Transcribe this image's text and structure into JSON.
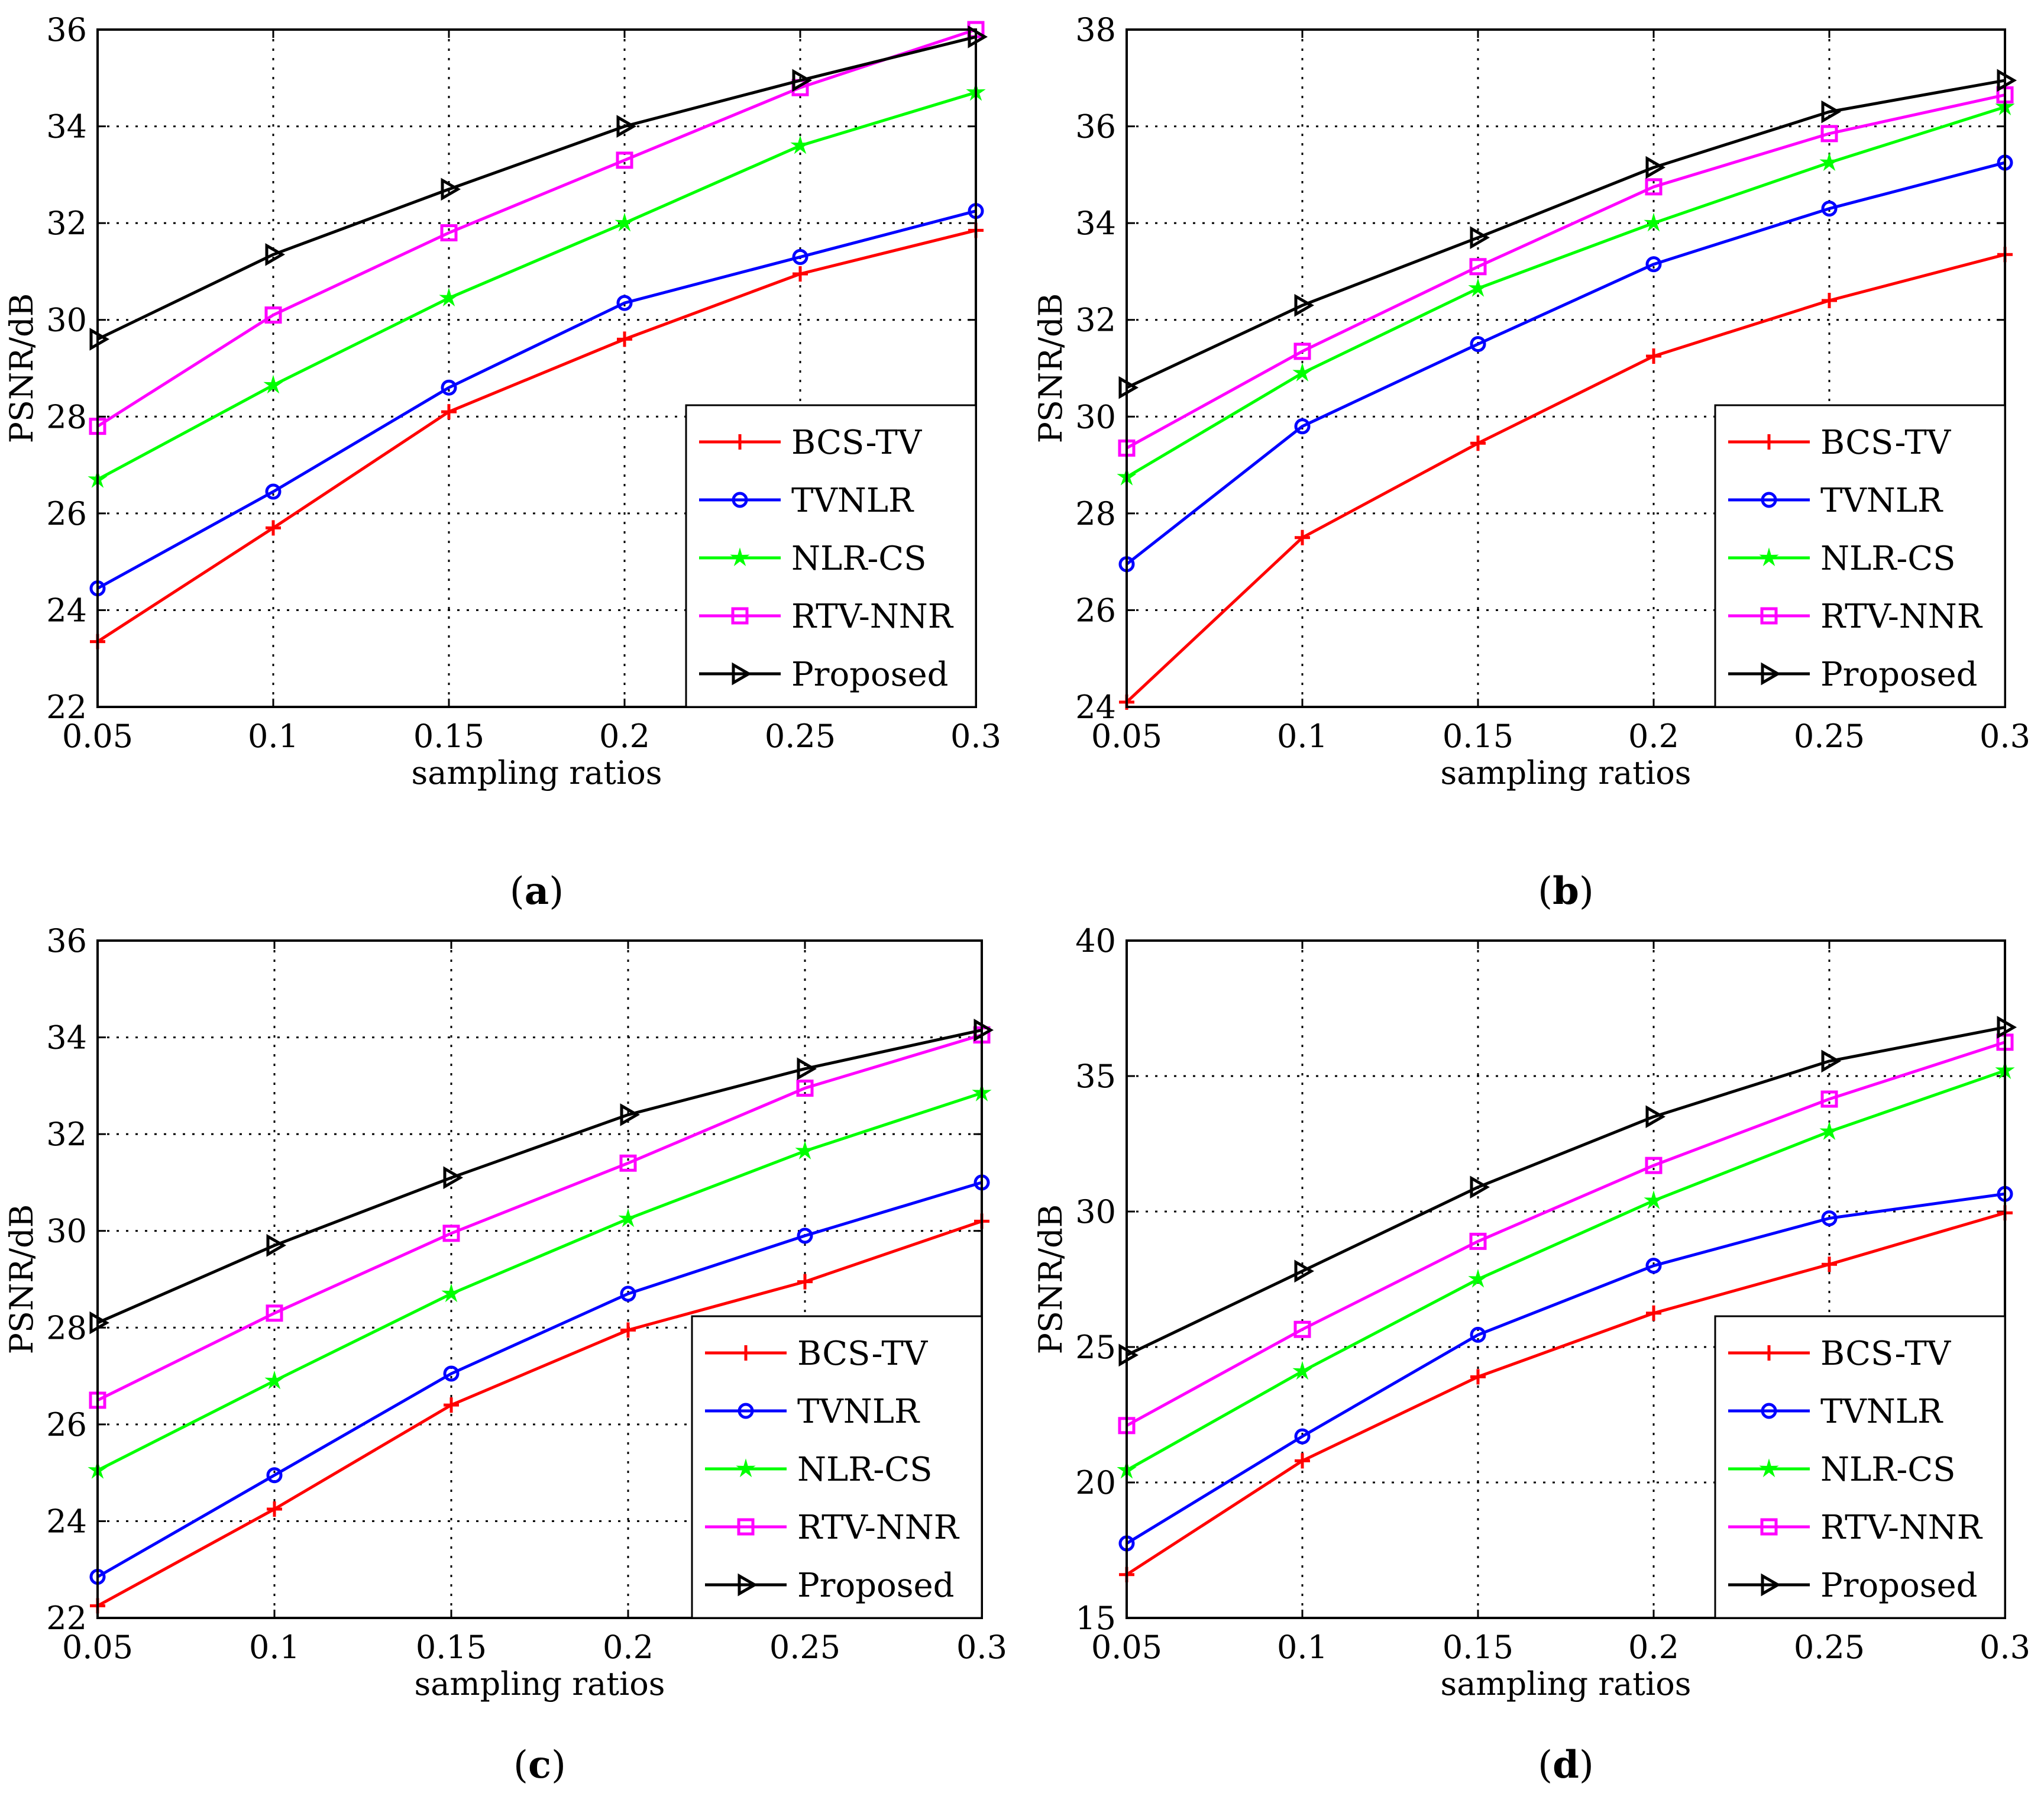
{
  "colors": {
    "BCS-TV": "#ff0000",
    "TVNLR": "#0000ff",
    "NLR-CS": "#00ff00",
    "RTV-NNR": "#ff00ff",
    "Proposed": "#000000"
  },
  "markers": {
    "BCS-TV": "plus",
    "TVNLR": "circle",
    "NLR-CS": "star",
    "RTV-NNR": "square",
    "Proposed": "triangle-right"
  },
  "chart_data": [
    {
      "type": "line",
      "caption_letter": "a",
      "caption_open": "(",
      "caption_close": ")",
      "xlabel": "sampling ratios",
      "ylabel": "PSNR/dB",
      "x": [
        0.05,
        0.1,
        0.15,
        0.2,
        0.25,
        0.3
      ],
      "x_tick_labels": [
        "0.05",
        "0.1",
        "0.15",
        "0.2",
        "0.25",
        "0.3"
      ],
      "xlim": [
        0.05,
        0.3
      ],
      "ylim": [
        22,
        36
      ],
      "y_ticks": [
        22,
        24,
        26,
        28,
        30,
        32,
        34,
        36
      ],
      "y_tick_labels": [
        "22",
        "24",
        "26",
        "28",
        "30",
        "32",
        "34",
        "36"
      ],
      "grid": true,
      "legend_position": "bottom-right",
      "series": [
        {
          "name": "BCS-TV",
          "values": [
            23.35,
            25.7,
            28.1,
            29.6,
            30.95,
            31.85
          ]
        },
        {
          "name": "TVNLR",
          "values": [
            24.45,
            26.45,
            28.6,
            30.35,
            31.3,
            32.25
          ]
        },
        {
          "name": "NLR-CS",
          "values": [
            26.7,
            28.65,
            30.45,
            32.0,
            33.6,
            34.7
          ]
        },
        {
          "name": "RTV-NNR",
          "values": [
            27.8,
            30.1,
            31.8,
            33.3,
            34.8,
            36.0
          ]
        },
        {
          "name": "Proposed",
          "values": [
            29.6,
            31.35,
            32.7,
            34.0,
            34.95,
            35.85
          ]
        }
      ]
    },
    {
      "type": "line",
      "caption_letter": "b",
      "caption_open": "(",
      "caption_close": ")",
      "xlabel": "sampling ratios",
      "ylabel": "PSNR/dB",
      "x": [
        0.05,
        0.1,
        0.15,
        0.2,
        0.25,
        0.3
      ],
      "x_tick_labels": [
        "0.05",
        "0.1",
        "0.15",
        "0.2",
        "0.25",
        "0.3"
      ],
      "xlim": [
        0.05,
        0.3
      ],
      "ylim": [
        24,
        38
      ],
      "y_ticks": [
        24,
        26,
        28,
        30,
        32,
        34,
        36,
        38
      ],
      "y_tick_labels": [
        "24",
        "26",
        "28",
        "30",
        "32",
        "34",
        "36",
        "38"
      ],
      "grid": true,
      "legend_position": "bottom-right",
      "series": [
        {
          "name": "BCS-TV",
          "values": [
            24.1,
            27.5,
            29.45,
            31.25,
            32.4,
            33.35
          ]
        },
        {
          "name": "TVNLR",
          "values": [
            26.95,
            29.8,
            31.5,
            33.15,
            34.3,
            35.25
          ]
        },
        {
          "name": "NLR-CS",
          "values": [
            28.75,
            30.9,
            32.65,
            34.0,
            35.25,
            36.4
          ]
        },
        {
          "name": "RTV-NNR",
          "values": [
            29.35,
            31.35,
            33.1,
            34.75,
            35.85,
            36.65
          ]
        },
        {
          "name": "Proposed",
          "values": [
            30.6,
            32.3,
            33.7,
            35.15,
            36.3,
            36.95
          ]
        }
      ]
    },
    {
      "type": "line",
      "caption_letter": "c",
      "caption_open": "(",
      "caption_close": ")",
      "xlabel": "sampling ratios",
      "ylabel": "PSNR/dB",
      "x": [
        0.05,
        0.1,
        0.15,
        0.2,
        0.25,
        0.3
      ],
      "x_tick_labels": [
        "0.05",
        "0.1",
        "0.15",
        "0.2",
        "0.25",
        "0.3"
      ],
      "xlim": [
        0.05,
        0.3
      ],
      "ylim": [
        22,
        36
      ],
      "y_ticks": [
        22,
        24,
        26,
        28,
        30,
        32,
        34,
        36
      ],
      "y_tick_labels": [
        "22",
        "24",
        "26",
        "28",
        "30",
        "32",
        "34",
        "36"
      ],
      "grid": true,
      "legend_position": "bottom-right",
      "series": [
        {
          "name": "BCS-TV",
          "values": [
            22.25,
            24.25,
            26.4,
            27.95,
            28.95,
            30.2
          ]
        },
        {
          "name": "TVNLR",
          "values": [
            22.85,
            24.95,
            27.05,
            28.7,
            29.9,
            31.0
          ]
        },
        {
          "name": "NLR-CS",
          "values": [
            25.05,
            26.9,
            28.7,
            30.25,
            31.65,
            32.85
          ]
        },
        {
          "name": "RTV-NNR",
          "values": [
            26.5,
            28.3,
            29.95,
            31.4,
            32.95,
            34.05
          ]
        },
        {
          "name": "Proposed",
          "values": [
            28.1,
            29.7,
            31.1,
            32.4,
            33.35,
            34.15
          ]
        }
      ]
    },
    {
      "type": "line",
      "caption_letter": "d",
      "caption_open": "(",
      "caption_close": ")",
      "xlabel": "sampling ratios",
      "ylabel": "PSNR/dB",
      "x": [
        0.05,
        0.1,
        0.15,
        0.2,
        0.25,
        0.3
      ],
      "x_tick_labels": [
        "0.05",
        "0.1",
        "0.15",
        "0.2",
        "0.25",
        "0.3"
      ],
      "xlim": [
        0.05,
        0.3
      ],
      "ylim": [
        15,
        40
      ],
      "y_ticks": [
        15,
        20,
        25,
        30,
        35,
        40
      ],
      "y_tick_labels": [
        "15",
        "20",
        "25",
        "30",
        "35",
        "40"
      ],
      "grid": true,
      "legend_position": "bottom-right",
      "series": [
        {
          "name": "BCS-TV",
          "values": [
            16.6,
            20.8,
            23.9,
            26.25,
            28.05,
            29.95
          ]
        },
        {
          "name": "TVNLR",
          "values": [
            17.75,
            21.7,
            25.45,
            28.0,
            29.75,
            30.65
          ]
        },
        {
          "name": "NLR-CS",
          "values": [
            20.45,
            24.1,
            27.5,
            30.4,
            32.95,
            35.2
          ]
        },
        {
          "name": "RTV-NNR",
          "values": [
            22.1,
            25.65,
            28.9,
            31.7,
            34.15,
            36.25
          ]
        },
        {
          "name": "Proposed",
          "values": [
            24.7,
            27.8,
            30.9,
            33.5,
            35.55,
            36.8
          ]
        }
      ]
    }
  ]
}
